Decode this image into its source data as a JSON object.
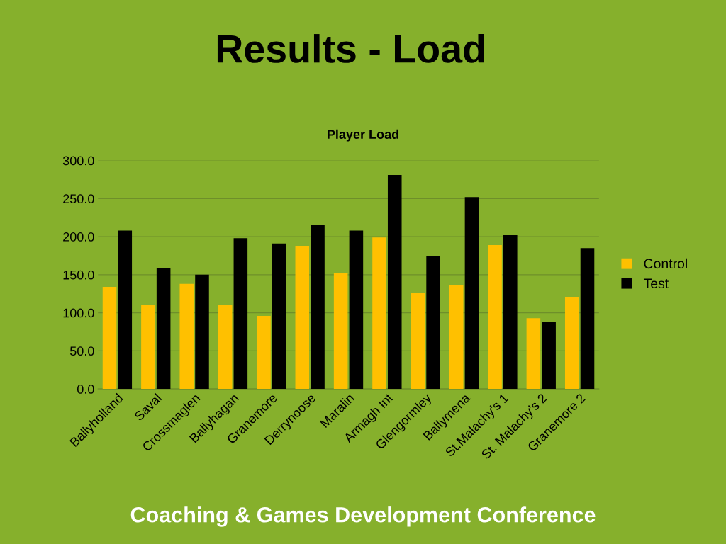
{
  "chart_data": {
    "type": "bar",
    "title": "Results - Load",
    "subtitle": "Player Load",
    "categories": [
      "Ballyholland",
      "Saval",
      "Crossmaglen",
      "Ballyhagan",
      "Granemore",
      "Derrynoose",
      "Maralin",
      "Armagh Int",
      "Glengormley",
      "Ballymena",
      "St.Malachy's 1",
      "St. Malachy's 2",
      "Granemore 2"
    ],
    "series": [
      {
        "name": "Control",
        "color": "#ffc000",
        "values": [
          134,
          110,
          138,
          110,
          96,
          187,
          152,
          199,
          126,
          136,
          189,
          93,
          121
        ]
      },
      {
        "name": "Test",
        "color": "#000000",
        "values": [
          208,
          159,
          150,
          198,
          191,
          215,
          208,
          281,
          174,
          252,
          202,
          88,
          185
        ]
      }
    ],
    "ylim": [
      0,
      300
    ],
    "yticks": [
      {
        "value": 0,
        "label": "0.0"
      },
      {
        "value": 50,
        "label": "50.0"
      },
      {
        "value": 100,
        "label": "100.0"
      },
      {
        "value": 150,
        "label": "150.0"
      },
      {
        "value": 200,
        "label": "200.0"
      },
      {
        "value": 250,
        "label": "250.0"
      },
      {
        "value": 300,
        "label": "300.0"
      }
    ],
    "grid": "y",
    "legend": "right",
    "annotations": [
      "Coaching & Games Development Conference"
    ]
  }
}
